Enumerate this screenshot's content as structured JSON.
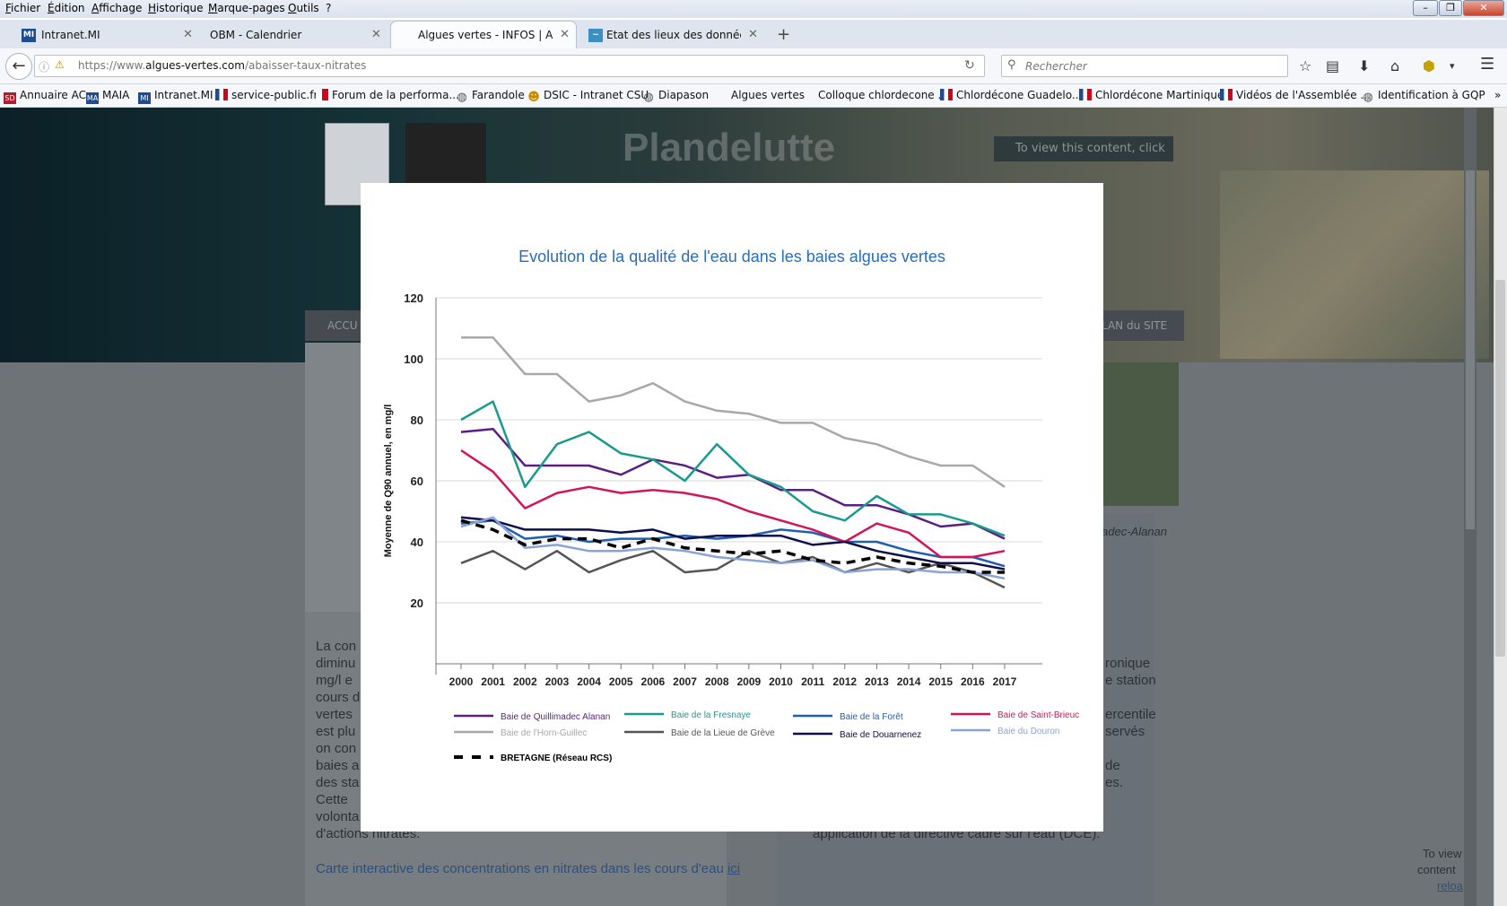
{
  "menu": [
    "Fichier",
    "Édition",
    "Affichage",
    "Historique",
    "Marque-pages",
    "Outils",
    "?"
  ],
  "tabs": [
    {
      "label": "Intranet.MI",
      "favicon": "MI"
    },
    {
      "label": "OBM - Calendrier",
      "favicon": ""
    },
    {
      "label": "Algues vertes - INFOS | Ab...",
      "favicon": ""
    },
    {
      "label": "Etat des lieux des données ...",
      "favicon": ""
    }
  ],
  "new_tab_label": "+",
  "url": {
    "prefix": "https://www.",
    "domain": "algues-vertes.com",
    "path": "/abaisser-taux-nitrates"
  },
  "search": {
    "placeholder": "Rechercher"
  },
  "bookmarks": [
    {
      "label": "Annuaire AC",
      "icon": "SD"
    },
    {
      "label": "MAIA",
      "icon": "MA"
    },
    {
      "label": "Intranet.MI",
      "icon": "MI"
    },
    {
      "label": "service-public.fr",
      "icon": "flag"
    },
    {
      "label": "Forum de la performa...",
      "icon": "flag"
    },
    {
      "label": "Farandole",
      "icon": "globe"
    },
    {
      "label": "DSIC - Intranet CSU",
      "icon": "people"
    },
    {
      "label": "Diapason",
      "icon": "globe"
    },
    {
      "label": "Algues vertes",
      "icon": "none"
    },
    {
      "label": "Colloque chlordecone ...",
      "icon": "none"
    },
    {
      "label": "Chlordécone Guadelo...",
      "icon": "flag"
    },
    {
      "label": "Chlordécone Martinique",
      "icon": "flag"
    },
    {
      "label": "Vidéos de l'Assemblée ...",
      "icon": "flag"
    },
    {
      "label": "Identification à GQP",
      "icon": "globe"
    }
  ],
  "bookmarks_more": "»",
  "page": {
    "hero_title": "Plandelutte",
    "view_content": "To view this content, click",
    "nav_first": "ACCU",
    "nav_last": "LAN du SITE",
    "left_text": [
      "La con",
      "diminu",
      "mg/l e",
      "cours d",
      "vertes",
      "est plu",
      "on con",
      "baies a",
      "des sta",
      "Cette",
      "volonta",
      "d'actions nitrates."
    ],
    "right_text": [
      "ronique",
      "e station",
      "ercentile",
      "servés",
      "de",
      "es."
    ],
    "right_bottom": "application de la directive cadre sur l'eau (DCE).",
    "photo_caption": "adec-Alanan",
    "link_text": "Carte interactive des concentrations en nitrates dans les cours d'eau",
    "link_ici": "ici",
    "corner_text": [
      "To view",
      "content",
      "reloa"
    ]
  },
  "chart_data": {
    "type": "line",
    "title": "Evolution de la qualité de l'eau dans les baies algues vertes",
    "ylabel": "Moyenne de Q90 annuel, en mg/l",
    "xlabel": "",
    "categories": [
      "2000",
      "2001",
      "2002",
      "2003",
      "2004",
      "2005",
      "2006",
      "2007",
      "2008",
      "2009",
      "2010",
      "2011",
      "2012",
      "2013",
      "2014",
      "2015",
      "2016",
      "2017"
    ],
    "ylim": [
      0,
      120
    ],
    "yticks": [
      20,
      40,
      60,
      80,
      100,
      120
    ],
    "grid": true,
    "legend_position": "bottom",
    "series": [
      {
        "name": "Baie de Quillimadec Alanan",
        "color": "#5b1e82",
        "dash": false,
        "values": [
          76,
          77,
          65,
          65,
          65,
          62,
          67,
          65,
          61,
          62,
          57,
          57,
          52,
          52,
          49,
          45,
          46,
          41
        ]
      },
      {
        "name": "Baie de la Fresnaye",
        "color": "#1a9a8e",
        "dash": false,
        "values": [
          80,
          86,
          58,
          72,
          76,
          69,
          67,
          60,
          72,
          62,
          58,
          50,
          47,
          55,
          49,
          49,
          46,
          42
        ]
      },
      {
        "name": "Baie de la Forêt",
        "color": "#1f5fb3",
        "dash": false,
        "values": [
          46,
          47,
          41,
          42,
          40,
          41,
          41,
          42,
          41,
          42,
          44,
          43,
          40,
          40,
          37,
          35,
          35,
          32
        ]
      },
      {
        "name": "Baie de Saint-Brieuc",
        "color": "#d2145a",
        "dash": false,
        "values": [
          70,
          63,
          51,
          56,
          58,
          56,
          57,
          56,
          54,
          50,
          47,
          44,
          40,
          46,
          43,
          35,
          35,
          37
        ]
      },
      {
        "name": "Baie de l'Horn-Guillec",
        "color": "#a8a8a8",
        "dash": false,
        "values": [
          107,
          107,
          95,
          95,
          86,
          88,
          92,
          86,
          83,
          82,
          79,
          79,
          74,
          72,
          68,
          65,
          65,
          58
        ]
      },
      {
        "name": "Baie de la Lieue de Grève",
        "color": "#555555",
        "dash": false,
        "values": [
          33,
          37,
          31,
          37,
          30,
          34,
          37,
          30,
          31,
          37,
          33,
          35,
          30,
          33,
          30,
          33,
          30,
          25
        ]
      },
      {
        "name": "Baie de Douarnenez",
        "color": "#0d0f4a",
        "dash": false,
        "values": [
          48,
          47,
          44,
          44,
          44,
          43,
          44,
          41,
          42,
          42,
          42,
          39,
          40,
          37,
          35,
          33,
          33,
          31
        ]
      },
      {
        "name": "Baie du Douron",
        "color": "#8aa3d6",
        "dash": false,
        "values": [
          45,
          48,
          38,
          39,
          37,
          37,
          38,
          37,
          35,
          34,
          33,
          34,
          30,
          31,
          31,
          30,
          30,
          28
        ]
      },
      {
        "name": "BRETAGNE (Réseau RCS)",
        "color": "#000000",
        "dash": true,
        "values": [
          47,
          44,
          39,
          41,
          41,
          38,
          41,
          38,
          37,
          36,
          37,
          34,
          33,
          35,
          33,
          32,
          30,
          30
        ]
      }
    ]
  }
}
